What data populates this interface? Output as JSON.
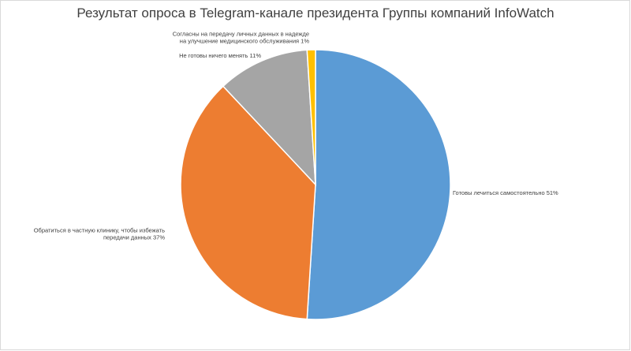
{
  "chart_data": {
    "type": "pie",
    "title": "Результат опроса в Telegram-канале президента Группы компаний InfoWatch",
    "slices": [
      {
        "name": "Готовы лечиться самостоятельно",
        "value": 51,
        "label_lines": [
          "Готовы лечиться самостоятельно  51%"
        ],
        "color": "#5b9bd5"
      },
      {
        "name": "Обратиться в частную клинику, чтобы избежать передачи данных",
        "value": 37,
        "label_lines": [
          "Обратиться в частную клинику, чтобы избежать",
          "передачи данных  37%"
        ],
        "color": "#ed7d31"
      },
      {
        "name": "Не готовы ничего менять",
        "value": 11,
        "label_lines": [
          "Не готовы ничего менять  11%"
        ],
        "color": "#a5a5a5"
      },
      {
        "name": "Согласны на передачу личных данных в надежде на улучшение медицинского обслуживания",
        "value": 1,
        "label_lines": [
          "Согласны на передачу личных данных в надежде",
          "на улучшение медицинского обслуживания  1%"
        ],
        "color": "#ffc000"
      }
    ],
    "start_angle_deg": 0,
    "direction": "clockwise",
    "legend": "none",
    "data_labels": "outside"
  }
}
